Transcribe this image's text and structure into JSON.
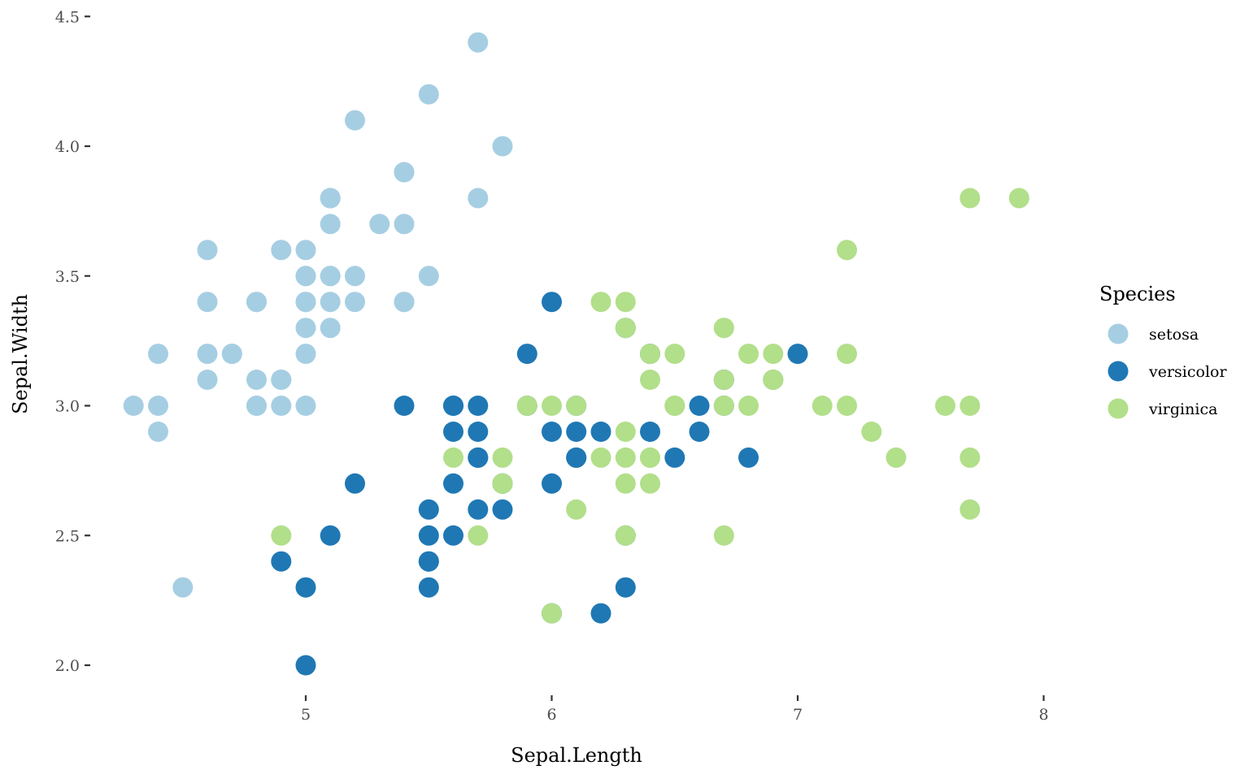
{
  "chart_data": {
    "type": "scatter",
    "xlabel": "Sepal.Length",
    "ylabel": "Sepal.Width",
    "xlim": [
      4.2,
      8.05
    ],
    "ylim": [
      1.9,
      4.5
    ],
    "x_ticks": [
      5,
      6,
      7,
      8
    ],
    "x_tick_labels": [
      "5",
      "6",
      "7",
      "8"
    ],
    "y_ticks": [
      2.0,
      2.5,
      3.0,
      3.5,
      4.0,
      4.5
    ],
    "y_tick_labels": [
      "2.0",
      "2.5",
      "3.0",
      "3.5",
      "4.0",
      "4.5"
    ],
    "grid": false,
    "legend": {
      "title": "Species",
      "position": "right"
    },
    "series": [
      {
        "name": "setosa",
        "color": "#a6cee3",
        "points": [
          [
            5.1,
            3.5
          ],
          [
            4.9,
            3.0
          ],
          [
            4.7,
            3.2
          ],
          [
            4.6,
            3.1
          ],
          [
            5.0,
            3.6
          ],
          [
            5.4,
            3.9
          ],
          [
            4.6,
            3.4
          ],
          [
            5.0,
            3.4
          ],
          [
            4.4,
            2.9
          ],
          [
            4.9,
            3.1
          ],
          [
            5.4,
            3.7
          ],
          [
            4.8,
            3.4
          ],
          [
            4.8,
            3.0
          ],
          [
            4.3,
            3.0
          ],
          [
            5.8,
            4.0
          ],
          [
            5.7,
            4.4
          ],
          [
            5.4,
            3.9
          ],
          [
            5.1,
            3.5
          ],
          [
            5.7,
            3.8
          ],
          [
            5.1,
            3.8
          ],
          [
            5.4,
            3.4
          ],
          [
            5.1,
            3.7
          ],
          [
            4.6,
            3.6
          ],
          [
            5.1,
            3.3
          ],
          [
            4.8,
            3.4
          ],
          [
            5.0,
            3.0
          ],
          [
            5.0,
            3.4
          ],
          [
            5.2,
            3.5
          ],
          [
            5.2,
            3.4
          ],
          [
            4.7,
            3.2
          ],
          [
            4.8,
            3.1
          ],
          [
            5.4,
            3.4
          ],
          [
            5.2,
            4.1
          ],
          [
            5.5,
            4.2
          ],
          [
            4.9,
            3.1
          ],
          [
            5.0,
            3.2
          ],
          [
            5.5,
            3.5
          ],
          [
            4.9,
            3.6
          ],
          [
            4.4,
            3.0
          ],
          [
            5.1,
            3.4
          ],
          [
            5.0,
            3.5
          ],
          [
            4.5,
            2.3
          ],
          [
            4.4,
            3.2
          ],
          [
            5.0,
            3.5
          ],
          [
            5.1,
            3.8
          ],
          [
            4.8,
            3.0
          ],
          [
            5.1,
            3.8
          ],
          [
            4.6,
            3.2
          ],
          [
            5.3,
            3.7
          ],
          [
            5.0,
            3.3
          ]
        ]
      },
      {
        "name": "versicolor",
        "color": "#1f78b4",
        "points": [
          [
            7.0,
            3.2
          ],
          [
            6.4,
            3.2
          ],
          [
            6.9,
            3.1
          ],
          [
            5.5,
            2.3
          ],
          [
            6.5,
            2.8
          ],
          [
            5.7,
            2.8
          ],
          [
            6.3,
            3.3
          ],
          [
            4.9,
            2.4
          ],
          [
            6.6,
            2.9
          ],
          [
            5.2,
            2.7
          ],
          [
            5.0,
            2.0
          ],
          [
            5.9,
            3.0
          ],
          [
            6.0,
            2.2
          ],
          [
            6.1,
            2.9
          ],
          [
            5.6,
            2.9
          ],
          [
            6.7,
            3.1
          ],
          [
            5.6,
            3.0
          ],
          [
            5.8,
            2.7
          ],
          [
            6.2,
            2.2
          ],
          [
            5.6,
            2.5
          ],
          [
            5.9,
            3.2
          ],
          [
            6.1,
            2.8
          ],
          [
            6.3,
            2.5
          ],
          [
            6.1,
            2.8
          ],
          [
            6.4,
            2.9
          ],
          [
            6.6,
            3.0
          ],
          [
            6.8,
            2.8
          ],
          [
            6.7,
            3.0
          ],
          [
            6.0,
            2.9
          ],
          [
            5.7,
            2.6
          ],
          [
            5.5,
            2.4
          ],
          [
            5.5,
            2.4
          ],
          [
            5.8,
            2.7
          ],
          [
            6.0,
            2.7
          ],
          [
            5.4,
            3.0
          ],
          [
            6.0,
            3.4
          ],
          [
            6.7,
            3.1
          ],
          [
            6.3,
            2.3
          ],
          [
            5.6,
            3.0
          ],
          [
            5.5,
            2.5
          ],
          [
            5.5,
            2.6
          ],
          [
            6.1,
            3.0
          ],
          [
            5.8,
            2.6
          ],
          [
            5.0,
            2.3
          ],
          [
            5.6,
            2.7
          ],
          [
            5.7,
            3.0
          ],
          [
            5.7,
            2.9
          ],
          [
            6.2,
            2.9
          ],
          [
            5.1,
            2.5
          ],
          [
            5.7,
            2.8
          ]
        ]
      },
      {
        "name": "virginica",
        "color": "#b2df8a",
        "points": [
          [
            6.3,
            3.3
          ],
          [
            5.8,
            2.7
          ],
          [
            7.1,
            3.0
          ],
          [
            6.3,
            2.9
          ],
          [
            6.5,
            3.0
          ],
          [
            7.6,
            3.0
          ],
          [
            4.9,
            2.5
          ],
          [
            7.3,
            2.9
          ],
          [
            6.7,
            2.5
          ],
          [
            7.2,
            3.6
          ],
          [
            6.5,
            3.2
          ],
          [
            6.4,
            2.7
          ],
          [
            6.8,
            3.0
          ],
          [
            5.7,
            2.5
          ],
          [
            5.8,
            2.8
          ],
          [
            6.4,
            3.2
          ],
          [
            6.5,
            3.0
          ],
          [
            7.7,
            3.8
          ],
          [
            7.7,
            2.6
          ],
          [
            6.0,
            2.2
          ],
          [
            6.9,
            3.2
          ],
          [
            5.6,
            2.8
          ],
          [
            7.7,
            2.8
          ],
          [
            6.3,
            2.7
          ],
          [
            6.7,
            3.3
          ],
          [
            7.2,
            3.2
          ],
          [
            6.2,
            2.8
          ],
          [
            6.1,
            3.0
          ],
          [
            6.4,
            2.8
          ],
          [
            7.2,
            3.0
          ],
          [
            7.4,
            2.8
          ],
          [
            7.9,
            3.8
          ],
          [
            6.4,
            2.8
          ],
          [
            6.3,
            2.8
          ],
          [
            6.1,
            2.6
          ],
          [
            7.7,
            3.0
          ],
          [
            6.3,
            3.4
          ],
          [
            6.4,
            3.1
          ],
          [
            6.0,
            3.0
          ],
          [
            6.9,
            3.1
          ],
          [
            6.7,
            3.1
          ],
          [
            6.9,
            3.1
          ],
          [
            5.8,
            2.7
          ],
          [
            6.8,
            3.2
          ],
          [
            6.7,
            3.3
          ],
          [
            6.7,
            3.0
          ],
          [
            6.3,
            2.5
          ],
          [
            6.5,
            3.0
          ],
          [
            6.2,
            3.4
          ],
          [
            5.9,
            3.0
          ]
        ]
      }
    ]
  }
}
